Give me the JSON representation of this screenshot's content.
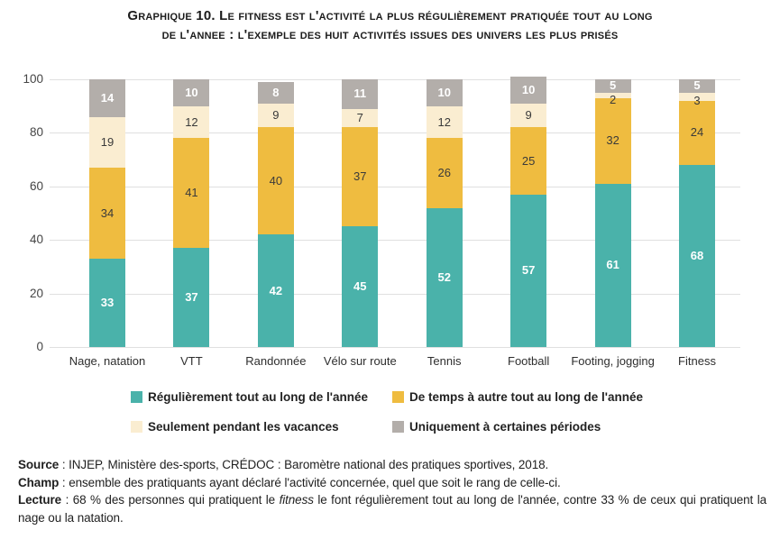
{
  "title": {
    "line1": "Graphique 10. Le fitness est l'activité la plus régulièrement pratiquée tout au long",
    "line2": "de l'annee : l'exemple des huit activités issues des univers les plus prisés"
  },
  "chart_data": {
    "type": "bar",
    "stacked": true,
    "unit": "%",
    "categories": [
      "Nage, natation",
      "VTT",
      "Randonnée",
      "Vélo sur route",
      "Tennis",
      "Football",
      "Footing, jogging",
      "Fitness"
    ],
    "series": [
      {
        "name": "Régulièrement tout au long de l'année",
        "color": "#4AB2AA",
        "label_style": "light",
        "values": [
          33,
          37,
          42,
          45,
          52,
          57,
          61,
          68
        ]
      },
      {
        "name": "De temps à autre tout au long de l'année",
        "color": "#EFBC40",
        "label_style": "dark",
        "values": [
          34,
          41,
          40,
          37,
          26,
          25,
          32,
          24
        ]
      },
      {
        "name": "Seulement pendant les vacances",
        "color": "#FAEDD1",
        "label_style": "dark",
        "values": [
          19,
          12,
          9,
          7,
          12,
          9,
          2,
          3
        ]
      },
      {
        "name": "Uniquement à certaines périodes",
        "color": "#B3AEAA",
        "label_style": "light",
        "values": [
          14,
          10,
          8,
          11,
          10,
          10,
          5,
          5
        ]
      }
    ],
    "ylim": [
      0,
      100
    ],
    "yticks": [
      0,
      20,
      40,
      60,
      80,
      100
    ],
    "grid": "horizontal",
    "legend_position": "bottom"
  },
  "notes": {
    "source_label": "Source",
    "source_text": " : INJEP, Ministère des-sports, CRÉDOC : Baromètre national des pratiques sportives, 2018.",
    "champ_label": "Champ",
    "champ_text": " : ensemble des pratiquants ayant déclaré l'activité concernée, quel que soit le rang de celle-ci.",
    "lecture_label": "Lecture",
    "lecture_text_1": " : 68 % des personnes qui pratiquent le ",
    "lecture_italic": "fitness",
    "lecture_text_2": " le font régulièrement tout au long de l'année, contre 33 % de ceux qui pratiquent la nage ou la natation."
  }
}
